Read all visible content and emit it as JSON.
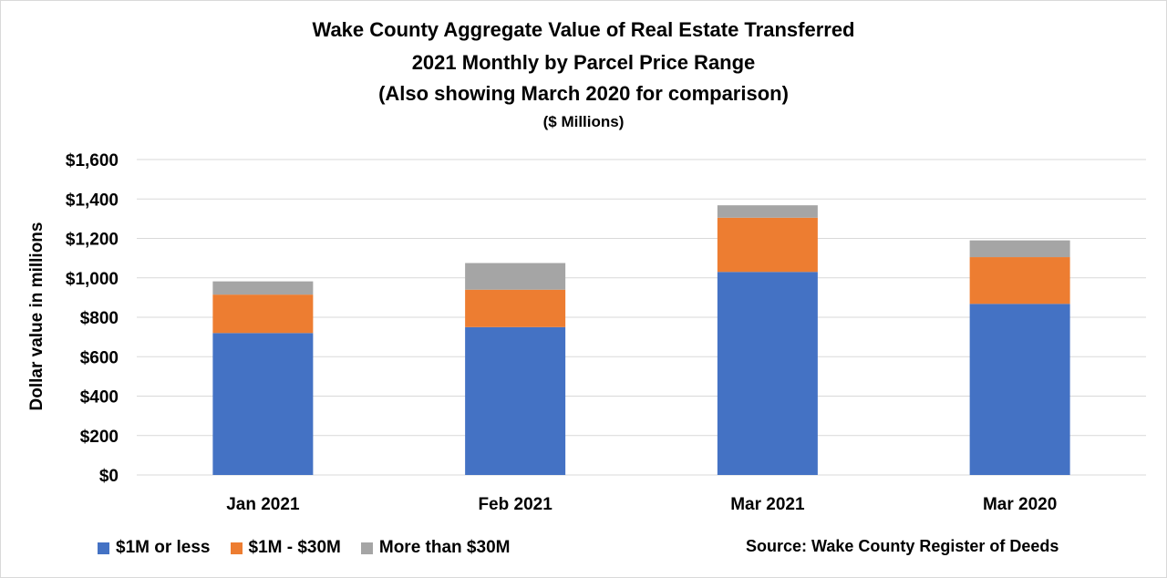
{
  "chart_data": {
    "type": "bar",
    "stacked": true,
    "title": "Wake County Aggregate Value of Real Estate Transferred",
    "subtitle_lines": [
      "2021 Monthly by Parcel Price Range",
      "(Also showing March 2020 for comparison)",
      "($ Millions)"
    ],
    "ylabel": "Dollar value in millions",
    "xlabel": "",
    "ylim": [
      0,
      1600
    ],
    "y_ticks": [
      0,
      200,
      400,
      600,
      800,
      1000,
      1200,
      1400,
      1600
    ],
    "y_tick_labels": [
      "$0",
      "$200",
      "$400",
      "$600",
      "$800",
      "$1,000",
      "$1,200",
      "$1,400",
      "$1,600"
    ],
    "categories": [
      "Jan 2021",
      "Feb 2021",
      "Mar 2021",
      "Mar 2020"
    ],
    "series": [
      {
        "name": "$1M or less",
        "color": "#4472c4",
        "values": [
          720,
          750,
          1030,
          868
        ]
      },
      {
        "name": "$1M - $30M",
        "color": "#ed7d31",
        "values": [
          195,
          190,
          275,
          237
        ]
      },
      {
        "name": "More than $30M",
        "color": "#a5a5a5",
        "values": [
          67,
          135,
          63,
          85
        ]
      }
    ],
    "grid": true,
    "legend_position": "bottom-left",
    "source": "Source: Wake County Register of Deeds"
  }
}
